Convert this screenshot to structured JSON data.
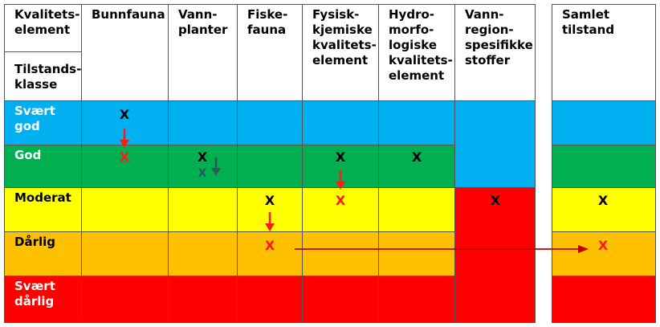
{
  "headers": {
    "kvalitetselement": "Kvalitets-\nelement",
    "tilstandsklasse": "Tilstands-\nklasse",
    "bunnfauna": "Bunnfauna",
    "vannplanter": "Vann-\nplanter",
    "fiskefauna": "Fiske-\nfauna",
    "fysisk_kjemiske": "Fysisk-\nkjemiske\nkvalitets-\nelement",
    "hydromorfologiske": "Hydro-\nmorfo-\nlogiske\nkvalitets-\nelement",
    "vannregionspesifikke": "Vann-\nregion-\nspesifikke\nstoffer",
    "samlet_tilstand": "Samlet\ntilstand"
  },
  "classes": [
    {
      "key": "svaert_god",
      "label": "Svært\ngod",
      "color": "#00b0f0"
    },
    {
      "key": "god",
      "label": "God",
      "color": "#00b050"
    },
    {
      "key": "moderat",
      "label": "Moderat",
      "color": "#ffff00"
    },
    {
      "key": "darlig",
      "label": "Dårlig",
      "color": "#ffc000"
    },
    {
      "key": "svaert_darlig",
      "label": "Svært\ndårlig",
      "color": "#ff0000"
    }
  ],
  "marks": {
    "bunnfauna_before": "X",
    "bunnfauna_after": "X",
    "vannplanter_before": "X",
    "vannplanter_after": "X",
    "fiskefauna_before": "X",
    "fiskefauna_after": "X",
    "fysisk_kjemiske_before": "X",
    "fysisk_kjemiske_after": "X",
    "hydromorfologiske": "X",
    "vannregionspesifikke": "X",
    "samlet_before": "X",
    "samlet_after": "X"
  },
  "colors": {
    "mark_black": "#000000",
    "mark_red": "#ff1a1a",
    "mark_teal": "#2e5a5a",
    "arrow_red": "#ff1a1a",
    "arrow_dark": "#c00000",
    "arrow_teal": "#2e5a5a"
  }
}
